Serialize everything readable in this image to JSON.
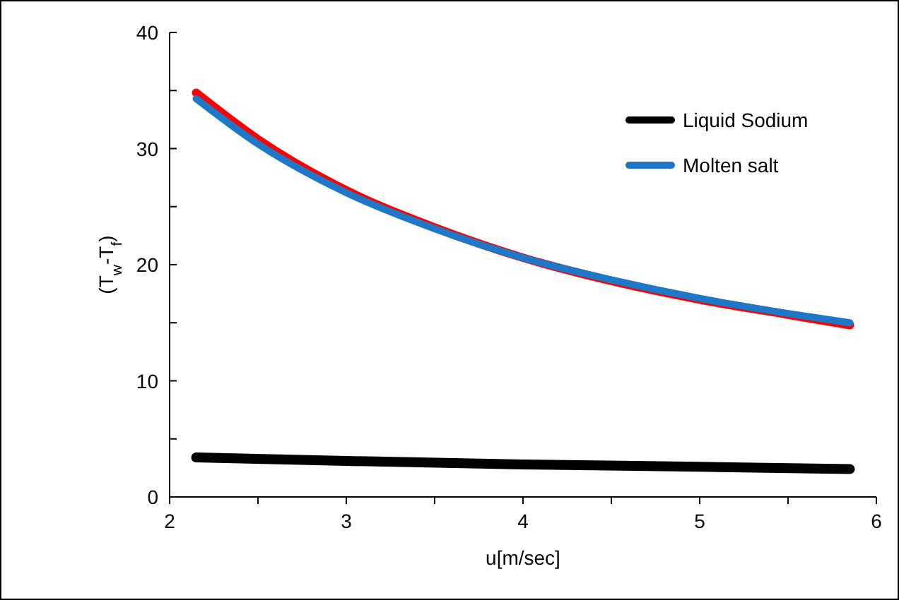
{
  "chart_data": {
    "type": "line",
    "xlabel": "u[m/sec]",
    "ylabel": "(T$_{w}$-T$_{f}$)",
    "xlim": [
      2,
      6
    ],
    "ylim": [
      0,
      40
    ],
    "xticks": [
      2,
      {
        "value": 2.5,
        "label": null
      },
      3,
      {
        "value": 3.5,
        "label": null
      },
      4,
      {
        "value": 4.5,
        "label": null
      },
      5,
      {
        "value": 5.5,
        "label": null
      },
      6
    ],
    "yticks": [
      0,
      {
        "value": 5,
        "label": null
      },
      10,
      {
        "value": 15,
        "label": null
      },
      20,
      {
        "value": 25,
        "label": null
      },
      30,
      {
        "value": 35,
        "label": null
      },
      40
    ],
    "grid": false,
    "legend": "top right",
    "marker": "none",
    "line_style": "solid",
    "series": [
      {
        "name": "Liquid Sodium",
        "color": "#000000",
        "x": [
          2.15,
          3,
          4,
          5,
          5.85
        ],
        "values": [
          3.4,
          3.1,
          2.8,
          2.6,
          2.4
        ]
      },
      {
        "color": "#ff0000",
        "x": [
          2.15,
          2.5,
          3,
          3.5,
          4,
          4.5,
          5,
          5.5,
          5.85
        ],
        "values": [
          34.8,
          30.8,
          26.4,
          23.2,
          20.6,
          18.6,
          17.0,
          15.7,
          14.8
        ]
      },
      {
        "name": "Molten salt",
        "color": "#1f77c8",
        "x": [
          2.15,
          2.5,
          3,
          3.5,
          4,
          4.5,
          5,
          5.5,
          5.85
        ],
        "values": [
          34.3,
          30.4,
          26.2,
          23.1,
          20.6,
          18.7,
          17.1,
          15.8,
          15.0
        ]
      }
    ]
  }
}
